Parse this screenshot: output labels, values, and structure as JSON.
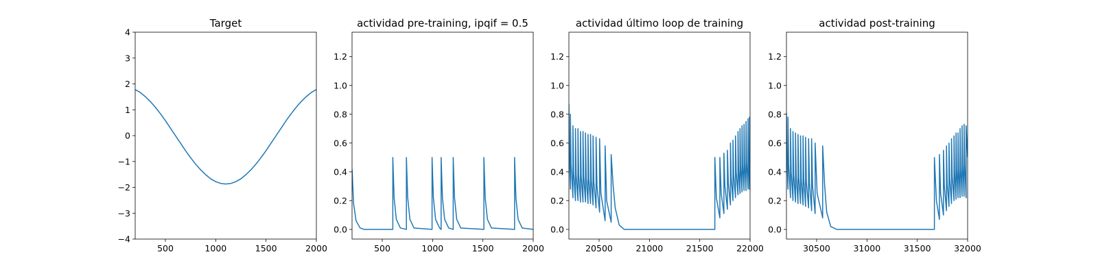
{
  "chart_data": [
    {
      "type": "line",
      "title": "Target",
      "color": "#1f77b4",
      "x": [
        200,
        250,
        300,
        350,
        400,
        450,
        500,
        550,
        600,
        650,
        700,
        750,
        800,
        850,
        900,
        950,
        1000,
        1050,
        1100,
        1150,
        1200,
        1250,
        1300,
        1350,
        1400,
        1450,
        1500,
        1550,
        1600,
        1650,
        1700,
        1750,
        1800,
        1850,
        1900,
        1950,
        2000
      ],
      "values": [
        1.78,
        1.67,
        1.51,
        1.32,
        1.1,
        0.85,
        0.58,
        0.29,
        0,
        -0.29,
        -0.58,
        -0.85,
        -1.1,
        -1.32,
        -1.51,
        -1.67,
        -1.78,
        -1.85,
        -1.87,
        -1.85,
        -1.78,
        -1.67,
        -1.51,
        -1.32,
        -1.1,
        -0.85,
        -0.58,
        -0.29,
        0,
        0.29,
        0.58,
        0.85,
        1.1,
        1.32,
        1.51,
        1.67,
        1.78
      ],
      "xlim": [
        200,
        2000
      ],
      "ylim": [
        -4,
        4
      ],
      "xticks": [
        500,
        1000,
        1500,
        2000
      ],
      "yticks": [
        {
          "value": -4,
          "label": "−4"
        },
        {
          "value": -3,
          "label": "−3"
        },
        {
          "value": -2,
          "label": "−2"
        },
        {
          "value": -1,
          "label": "−1"
        },
        0,
        1,
        2,
        3,
        4
      ]
    },
    {
      "type": "line",
      "title": "actividad pre-training, ipqif = 0.5",
      "color": "#1f77b4",
      "x": [
        200,
        215,
        240,
        280,
        320,
        605,
        605,
        618,
        640,
        680,
        740,
        740,
        753,
        775,
        815,
        995,
        995,
        1008,
        1030,
        1070,
        1085,
        1085,
        1098,
        1120,
        1160,
        1205,
        1205,
        1218,
        1240,
        1280,
        1510,
        1510,
        1523,
        1545,
        1585,
        1815,
        1815,
        1828,
        1850,
        1890,
        2000
      ],
      "values": [
        0.42,
        0.18,
        0.06,
        0.01,
        0,
        0,
        0.5,
        0.22,
        0.07,
        0.01,
        0,
        0.5,
        0.22,
        0.07,
        0.01,
        0,
        0.5,
        0.22,
        0.07,
        0.01,
        0,
        0.5,
        0.22,
        0.07,
        0.01,
        0,
        0.5,
        0.22,
        0.07,
        0.01,
        0,
        0.5,
        0.22,
        0.07,
        0.01,
        0,
        0.5,
        0.22,
        0.07,
        0.01,
        0
      ],
      "xlim": [
        200,
        2000
      ],
      "ylim": [
        -0.067,
        1.37
      ],
      "xticks": [
        500,
        1000,
        1500,
        2000
      ],
      "yticks": [
        {
          "value": 0,
          "label": "0.0"
        },
        0.2,
        0.4,
        0.6,
        0.8,
        {
          "value": 1,
          "label": "1.0"
        },
        1.2
      ]
    },
    {
      "type": "line",
      "title": "actividad último loop de training",
      "color": "#1f77b4",
      "x": [
        20200,
        20205,
        20215,
        20215,
        20222,
        20240,
        20240,
        20247,
        20265,
        20265,
        20272,
        20290,
        20290,
        20297,
        20315,
        20315,
        20322,
        20340,
        20340,
        20347,
        20365,
        20365,
        20372,
        20390,
        20390,
        20397,
        20415,
        20415,
        20422,
        20440,
        20440,
        20448,
        20470,
        20470,
        20479,
        20505,
        20505,
        20518,
        20560,
        20560,
        20575,
        20620,
        20620,
        20640,
        20660,
        20700,
        20750,
        21650,
        21650,
        21665,
        21700,
        21700,
        21713,
        21740,
        21740,
        21750,
        21775,
        21775,
        21784,
        21805,
        21805,
        21812,
        21830,
        21830,
        21837,
        21855,
        21855,
        21862,
        21880,
        21880,
        21886,
        21900,
        21900,
        21906,
        21920,
        21920,
        21926,
        21940,
        21940,
        21946,
        21960,
        21960,
        21966,
        21980,
        21980,
        21985,
        21995,
        21995,
        22000
      ],
      "values": [
        0.87,
        0.5,
        0.28,
        0.8,
        0.45,
        0.22,
        0.72,
        0.4,
        0.2,
        0.7,
        0.38,
        0.2,
        0.7,
        0.38,
        0.19,
        0.68,
        0.37,
        0.19,
        0.68,
        0.37,
        0.19,
        0.67,
        0.36,
        0.18,
        0.66,
        0.35,
        0.18,
        0.66,
        0.35,
        0.17,
        0.65,
        0.33,
        0.15,
        0.64,
        0.3,
        0.12,
        0.63,
        0.25,
        0.06,
        0.58,
        0.2,
        0.05,
        0.52,
        0.3,
        0.15,
        0.03,
        0,
        0,
        0.5,
        0.22,
        0.08,
        0.5,
        0.25,
        0.11,
        0.53,
        0.3,
        0.14,
        0.55,
        0.32,
        0.17,
        0.6,
        0.36,
        0.2,
        0.62,
        0.38,
        0.22,
        0.65,
        0.4,
        0.24,
        0.68,
        0.42,
        0.25,
        0.7,
        0.44,
        0.26,
        0.72,
        0.45,
        0.27,
        0.73,
        0.46,
        0.27,
        0.75,
        0.47,
        0.28,
        0.77,
        0.5,
        0.28,
        0.78,
        0.7
      ],
      "xlim": [
        20200,
        22000
      ],
      "ylim": [
        -0.067,
        1.37
      ],
      "xticks": [
        20500,
        21000,
        21500,
        22000
      ],
      "yticks": [
        {
          "value": 0,
          "label": "0.0"
        },
        0.2,
        0.4,
        0.6,
        0.8,
        {
          "value": 1,
          "label": "1.0"
        },
        1.2
      ]
    },
    {
      "type": "line",
      "title": "actividad post-training",
      "color": "#1f77b4",
      "x": [
        30200,
        30205,
        30215,
        30215,
        30222,
        30240,
        30240,
        30247,
        30265,
        30265,
        30272,
        30290,
        30290,
        30297,
        30315,
        30315,
        30322,
        30340,
        30340,
        30347,
        30365,
        30365,
        30372,
        30390,
        30390,
        30398,
        30420,
        30420,
        30429,
        30450,
        30450,
        30460,
        30485,
        30485,
        30505,
        30560,
        30560,
        30580,
        30600,
        30640,
        30700,
        31670,
        31670,
        31690,
        31720,
        31720,
        31732,
        31760,
        31760,
        31769,
        31790,
        31790,
        31797,
        31815,
        31815,
        31822,
        31840,
        31840,
        31847,
        31865,
        31865,
        31871,
        31885,
        31885,
        31891,
        31905,
        31905,
        31911,
        31925,
        31925,
        31931,
        31945,
        31945,
        31951,
        31965,
        31965,
        31971,
        31985,
        31985,
        32000
      ],
      "values": [
        0.81,
        0.5,
        0.28,
        0.78,
        0.45,
        0.22,
        0.7,
        0.4,
        0.2,
        0.68,
        0.38,
        0.19,
        0.67,
        0.37,
        0.18,
        0.66,
        0.36,
        0.18,
        0.65,
        0.35,
        0.17,
        0.65,
        0.35,
        0.16,
        0.64,
        0.33,
        0.15,
        0.63,
        0.32,
        0.13,
        0.63,
        0.3,
        0.11,
        0.6,
        0.25,
        0.08,
        0.58,
        0.3,
        0.12,
        0.02,
        0,
        0,
        0.5,
        0.2,
        0.07,
        0.52,
        0.25,
        0.1,
        0.55,
        0.3,
        0.13,
        0.58,
        0.32,
        0.16,
        0.6,
        0.35,
        0.18,
        0.63,
        0.37,
        0.2,
        0.65,
        0.4,
        0.21,
        0.67,
        0.42,
        0.22,
        0.67,
        0.42,
        0.22,
        0.7,
        0.43,
        0.23,
        0.72,
        0.45,
        0.23,
        0.73,
        0.46,
        0.22,
        0.72,
        0.5
      ],
      "xlim": [
        30200,
        32000
      ],
      "ylim": [
        -0.067,
        1.37
      ],
      "xticks": [
        30500,
        31000,
        31500,
        32000
      ],
      "yticks": [
        {
          "value": 0,
          "label": "0.0"
        },
        0.2,
        0.4,
        0.6,
        0.8,
        {
          "value": 1,
          "label": "1.0"
        },
        1.2
      ]
    }
  ]
}
